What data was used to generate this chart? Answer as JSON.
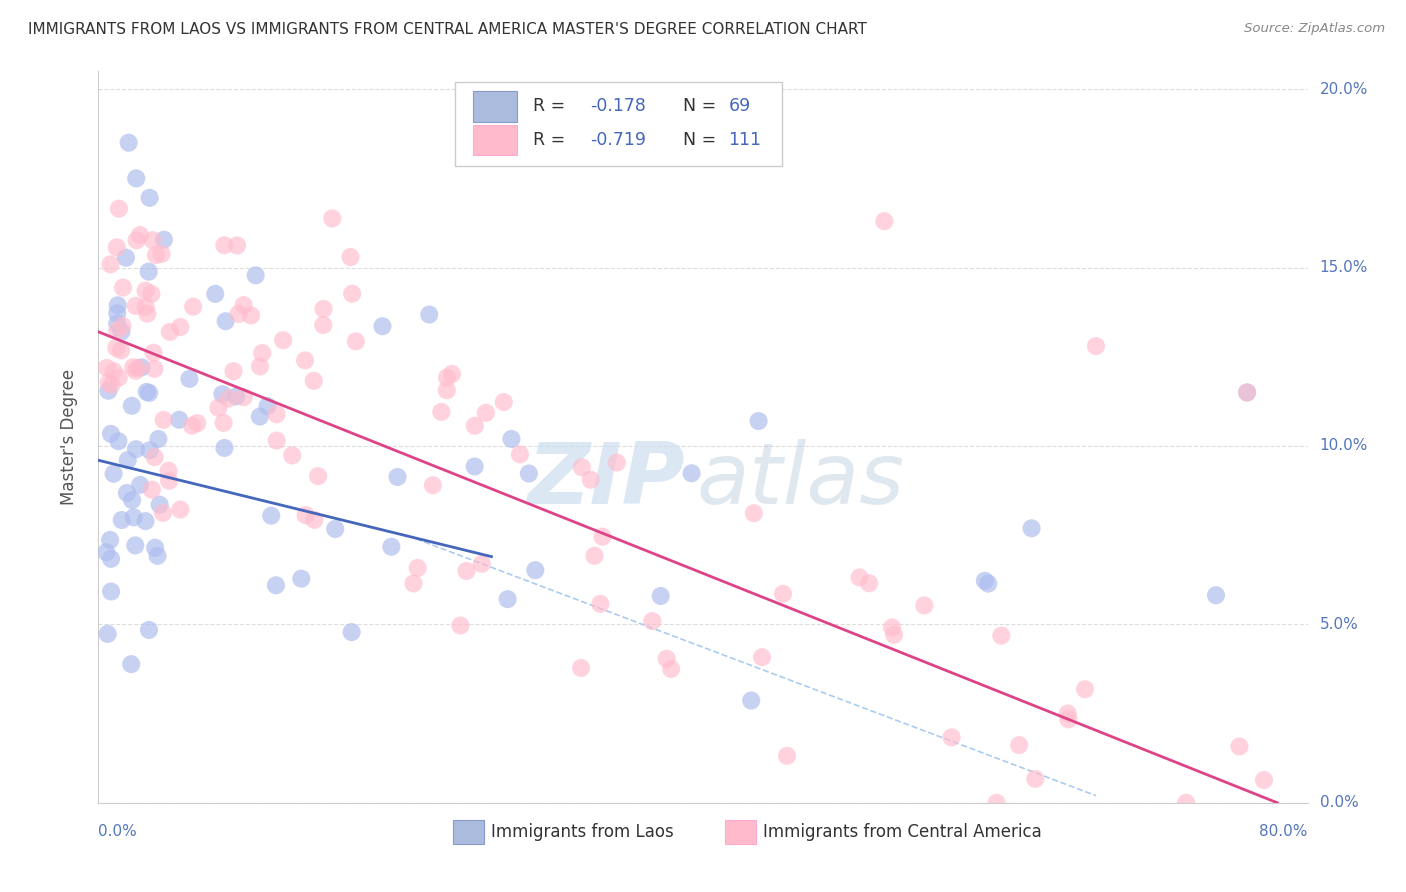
{
  "title": "IMMIGRANTS FROM LAOS VS IMMIGRANTS FROM CENTRAL AMERICA MASTER'S DEGREE CORRELATION CHART",
  "source": "Source: ZipAtlas.com",
  "ylabel": "Master's Degree",
  "legend_blue_r": "-0.178",
  "legend_blue_n": "69",
  "legend_pink_r": "-0.719",
  "legend_pink_n": "111",
  "legend_blue_label": "Immigrants from Laos",
  "legend_pink_label": "Immigrants from Central America",
  "xlim": [
    0.0,
    0.8
  ],
  "ylim": [
    0.0,
    0.205
  ],
  "ytick_values": [
    0.0,
    0.05,
    0.1,
    0.15,
    0.2
  ],
  "ytick_labels": [
    "0.0%",
    "5.0%",
    "10.0%",
    "15.0%",
    "20.0%"
  ],
  "blue_color": "#AABBDD",
  "blue_scatter_color": "#AABBEE",
  "pink_color": "#FFBBCC",
  "pink_scatter_color": "#FFBBCC",
  "blue_line_color": "#4466BB",
  "pink_line_color": "#DD4488",
  "dashed_color": "#AACCEE",
  "background_color": "#FFFFFF",
  "grid_color": "#DDDDDD",
  "axis_label_color": "#5577BB",
  "text_color": "#333333",
  "source_color": "#888888",
  "legend_text_color": "#4466BB",
  "blue_line_x0": 0.0,
  "blue_line_y0": 0.096,
  "blue_line_x1": 0.26,
  "blue_line_y1": 0.069,
  "pink_line_x0": 0.0,
  "pink_line_y0": 0.132,
  "pink_line_x1": 0.78,
  "pink_line_y1": 0.0,
  "dashed_line_x0": 0.21,
  "dashed_line_y0": 0.074,
  "dashed_line_x1": 0.66,
  "dashed_line_y1": 0.002
}
